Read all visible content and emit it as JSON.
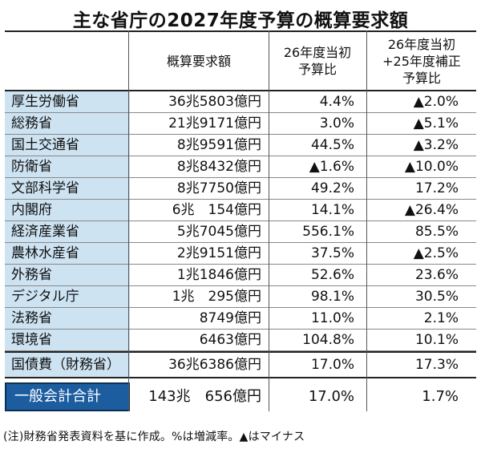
{
  "title": "主な省庁の2027年度予算の概算要求額",
  "headers": {
    "amount": "概算要求額",
    "ratio_2026": "26年度当初\n予算比",
    "ratio_2026_2025": "26年度当初\n+25年度補正\n予算比"
  },
  "rows": [
    {
      "name": "厚生労働省",
      "amount": "36兆5803億円",
      "ratio_2026": "4.4%",
      "ratio_2026_2025": "▲2.0%"
    },
    {
      "name": "総務省",
      "amount": "21兆9171億円",
      "ratio_2026": "3.0%",
      "ratio_2026_2025": "▲5.1%"
    },
    {
      "name": "国土交通省",
      "amount": "8兆9591億円",
      "ratio_2026": "44.5%",
      "ratio_2026_2025": "▲3.2%"
    },
    {
      "name": "防衛省",
      "amount": "8兆8432億円",
      "ratio_2026": "▲1.6%",
      "ratio_2026_2025": "▲10.0%"
    },
    {
      "name": "文部科学省",
      "amount": "8兆7750億円",
      "ratio_2026": "49.2%",
      "ratio_2026_2025": "17.2%"
    },
    {
      "name": "内閣府",
      "amount": "6兆　154億円",
      "ratio_2026": "14.1%",
      "ratio_2026_2025": "▲26.4%"
    },
    {
      "name": "経済産業省",
      "amount": "5兆7045億円",
      "ratio_2026": "556.1%",
      "ratio_2026_2025": "85.5%"
    },
    {
      "name": "農林水産省",
      "amount": "2兆9151億円",
      "ratio_2026": "37.5%",
      "ratio_2026_2025": "▲2.5%"
    },
    {
      "name": "外務省",
      "amount": "1兆1846億円",
      "ratio_2026": "52.6%",
      "ratio_2026_2025": "23.6%"
    },
    {
      "name": "デジタル庁",
      "amount": "1兆　295億円",
      "ratio_2026": "98.1%",
      "ratio_2026_2025": "30.5%"
    },
    {
      "name": "法務省",
      "amount": "8749億円",
      "ratio_2026": "11.0%",
      "ratio_2026_2025": "2.1%"
    },
    {
      "name": "環境省",
      "amount": "6463億円",
      "ratio_2026": "104.8%",
      "ratio_2026_2025": "10.1%"
    }
  ],
  "national_debt": {
    "name": "国債費（財務省）",
    "amount": "36兆6386億円",
    "ratio_2026": "17.0%",
    "ratio_2026_2025": "17.3%"
  },
  "total": {
    "name": "一般会計合計",
    "amount": "143兆　656億円",
    "ratio_2026": "17.0%",
    "ratio_2026_2025": "1.7%"
  },
  "note": "(注)財務省発表資料を基に作成。%は増減率。▲はマイナス",
  "colors": {
    "row_label_bg": "#cde3f2",
    "total_label_bg": "#1c5d9f"
  }
}
